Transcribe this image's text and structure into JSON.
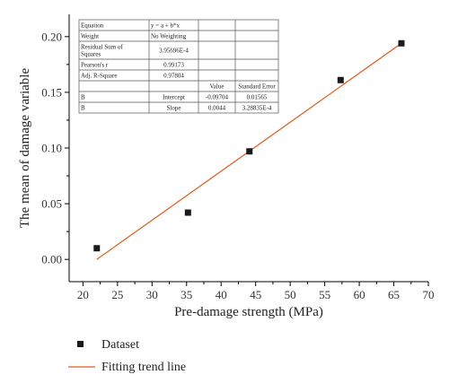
{
  "chart_data": {
    "type": "scatter",
    "xlabel": "Pre-damage strength (MPa)",
    "ylabel": "The mean of damage variable",
    "xlim": [
      18,
      70
    ],
    "ylim": [
      -0.02,
      0.22
    ],
    "x_ticks": [
      20,
      25,
      30,
      35,
      40,
      45,
      50,
      55,
      60,
      65,
      70
    ],
    "y_ticks": [
      0.0,
      0.05,
      0.1,
      0.15,
      0.2
    ],
    "x_tick_labels": [
      "20",
      "25",
      "30",
      "35",
      "40",
      "45",
      "50",
      "55",
      "60",
      "65",
      "70"
    ],
    "y_tick_labels": [
      "0.00",
      "0.05",
      "0.10",
      "0.15",
      "0.20"
    ],
    "series": [
      {
        "name": "Dataset",
        "kind": "scatter",
        "marker": "square",
        "color": "#1a1a1a",
        "x": [
          22.0,
          35.2,
          44.1,
          57.3,
          66.1
        ],
        "y": [
          0.01,
          0.042,
          0.097,
          0.161,
          0.194
        ]
      },
      {
        "name": "Fitting trend line",
        "kind": "line",
        "color": "#e05a1a",
        "x": [
          22.0,
          66.1
        ],
        "y": [
          0.0,
          0.194
        ]
      }
    ],
    "legend": {
      "placement": "bottom-left"
    },
    "table": {
      "placement": "top-left",
      "rows": [
        [
          "Equation",
          "y = a + b*x",
          "",
          ""
        ],
        [
          "Weight",
          "No Weighting",
          "",
          ""
        ],
        [
          "Residual Sum of\nSquares",
          "3.95696E-4",
          "",
          ""
        ],
        [
          "Pearson's r",
          "0.99173",
          "",
          ""
        ],
        [
          "Adj. R-Square",
          "0.97804",
          "",
          ""
        ],
        [
          "",
          "",
          "Value",
          "Standard Error"
        ],
        [
          "B",
          "Intercept",
          "-0.09704",
          "0.01565"
        ],
        [
          "B",
          "Slope",
          "0.0044",
          "3.28835E-4"
        ]
      ]
    }
  }
}
